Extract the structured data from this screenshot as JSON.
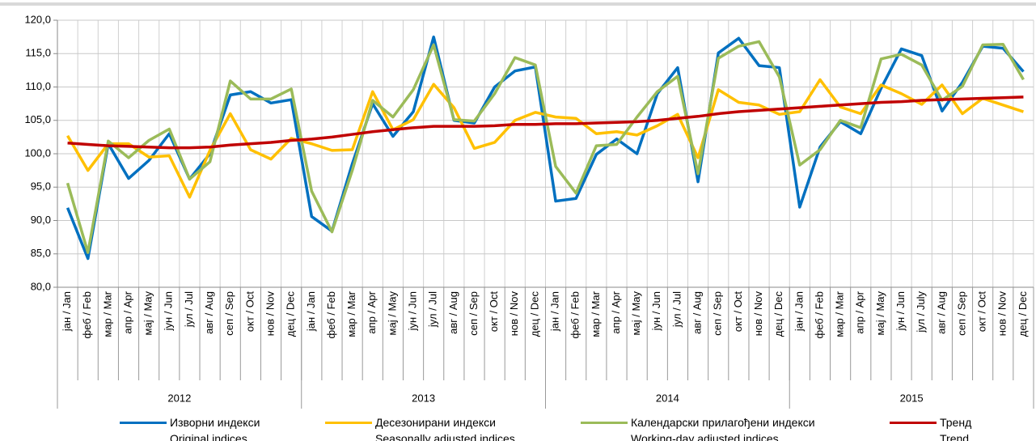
{
  "chart_data": {
    "type": "line",
    "categories": [
      "јан / Jan",
      "феб / Feb",
      "мар / Mar",
      "апр / Apr",
      "мај / May",
      "јун / Jun",
      "јул / Jul",
      "авг / Aug",
      "сеп / Sep",
      "окт / Oct",
      "нов / Nov",
      "дец / Dec",
      "јан / Jan",
      "феб / Feb",
      "мар / Mar",
      "апр / Apr",
      "мај / May",
      "јун / Jun",
      "јул / Jul",
      "авг / Aug",
      "сеп / Sep",
      "окт / Oct",
      "нов / Nov",
      "дец / Dec",
      "јан / Jan",
      "феб / Feb",
      "мар / Mar",
      "апр / Apr",
      "мај / May",
      "јун / Jun",
      "јул / Jul",
      "авг / Aug",
      "сеп / Sep",
      "окт / Oct",
      "нов / Nov",
      "дец / Dec",
      "јан / Jan",
      "феб / Feb",
      "мар / Mar",
      "апр / Apr",
      "мај / May",
      "јун / Jun",
      "јул / July",
      "авг / Aug",
      "сеп / Sep",
      "окт / Oct",
      "нов / Nov",
      "дец / Dec"
    ],
    "year_groups": [
      "2012",
      "2013",
      "2014",
      "2015"
    ],
    "series": [
      {
        "name": "Изворни индекси\nOriginal indices",
        "color": "#0070c0",
        "values": [
          91.9,
          84.3,
          101.5,
          96.3,
          99.0,
          103.0,
          96.2,
          100.0,
          108.8,
          109.3,
          107.6,
          108.1,
          90.6,
          88.4,
          98.5,
          107.5,
          102.6,
          106.3,
          117.5,
          105.0,
          104.6,
          110.0,
          112.4,
          113.0,
          92.9,
          93.3,
          99.9,
          102.2,
          100.0,
          109.0,
          112.9,
          95.8,
          115.1,
          117.3,
          113.2,
          112.9,
          92.0,
          101.0,
          104.8,
          103.0,
          109.8,
          115.7,
          114.7,
          106.4,
          110.7,
          116.1,
          115.8,
          112.3
        ]
      },
      {
        "name": "Десезонирани индекси\nSeasonally adjusted indices",
        "color": "#ffc000",
        "values": [
          102.7,
          97.5,
          101.5,
          101.5,
          99.5,
          99.7,
          93.5,
          100.5,
          106.0,
          100.6,
          99.2,
          102.3,
          101.5,
          100.5,
          100.6,
          109.3,
          103.6,
          105.1,
          110.4,
          106.9,
          100.8,
          101.7,
          105.0,
          106.2,
          105.5,
          105.3,
          103.0,
          103.3,
          102.8,
          104.2,
          105.9,
          99.4,
          109.6,
          107.7,
          107.3,
          105.9,
          106.3,
          111.1,
          107.0,
          106.0,
          110.3,
          109.0,
          107.4,
          110.3,
          106.0,
          108.3,
          107.3,
          106.3
        ]
      },
      {
        "name": "Календарски прилагођени индекси\nWorking-day adjusted indices",
        "color": "#9bbb59",
        "values": [
          95.6,
          85.2,
          101.9,
          99.4,
          102.0,
          103.7,
          96.2,
          98.8,
          110.9,
          108.2,
          108.2,
          109.7,
          94.4,
          88.3,
          97.5,
          108.0,
          105.5,
          109.6,
          116.3,
          105.1,
          104.9,
          109.0,
          114.4,
          113.3,
          98.1,
          94.1,
          101.2,
          101.4,
          105.5,
          109.3,
          111.6,
          97.0,
          114.3,
          116.1,
          116.8,
          111.5,
          98.3,
          100.6,
          105.0,
          103.9,
          114.2,
          114.9,
          113.3,
          108.0,
          110.1,
          116.3,
          116.4,
          111.1
        ]
      },
      {
        "name": "Тренд\nTrend",
        "color": "#c00000",
        "values": [
          101.6,
          101.4,
          101.2,
          101.1,
          101.0,
          100.9,
          100.9,
          101.0,
          101.3,
          101.5,
          101.7,
          102.0,
          102.2,
          102.5,
          102.9,
          103.3,
          103.6,
          103.9,
          104.1,
          104.1,
          104.1,
          104.2,
          104.4,
          104.4,
          104.5,
          104.5,
          104.6,
          104.7,
          104.8,
          105.0,
          105.3,
          105.6,
          106.0,
          106.3,
          106.5,
          106.7,
          106.9,
          107.1,
          107.3,
          107.5,
          107.7,
          107.8,
          108.0,
          108.1,
          108.2,
          108.3,
          108.4,
          108.5
        ]
      }
    ],
    "ylim": [
      80,
      120
    ],
    "yticks": [
      {
        "value": 80,
        "label": "80,0"
      },
      {
        "value": 85,
        "label": "85,0"
      },
      {
        "value": 90,
        "label": "90,0"
      },
      {
        "value": 95,
        "label": "95,0"
      },
      {
        "value": 100,
        "label": "100,0"
      },
      {
        "value": 105,
        "label": "105,0"
      },
      {
        "value": 110,
        "label": "110,0"
      },
      {
        "value": 115,
        "label": "115,0"
      },
      {
        "value": 120,
        "label": "120,0"
      }
    ],
    "grid": true
  }
}
